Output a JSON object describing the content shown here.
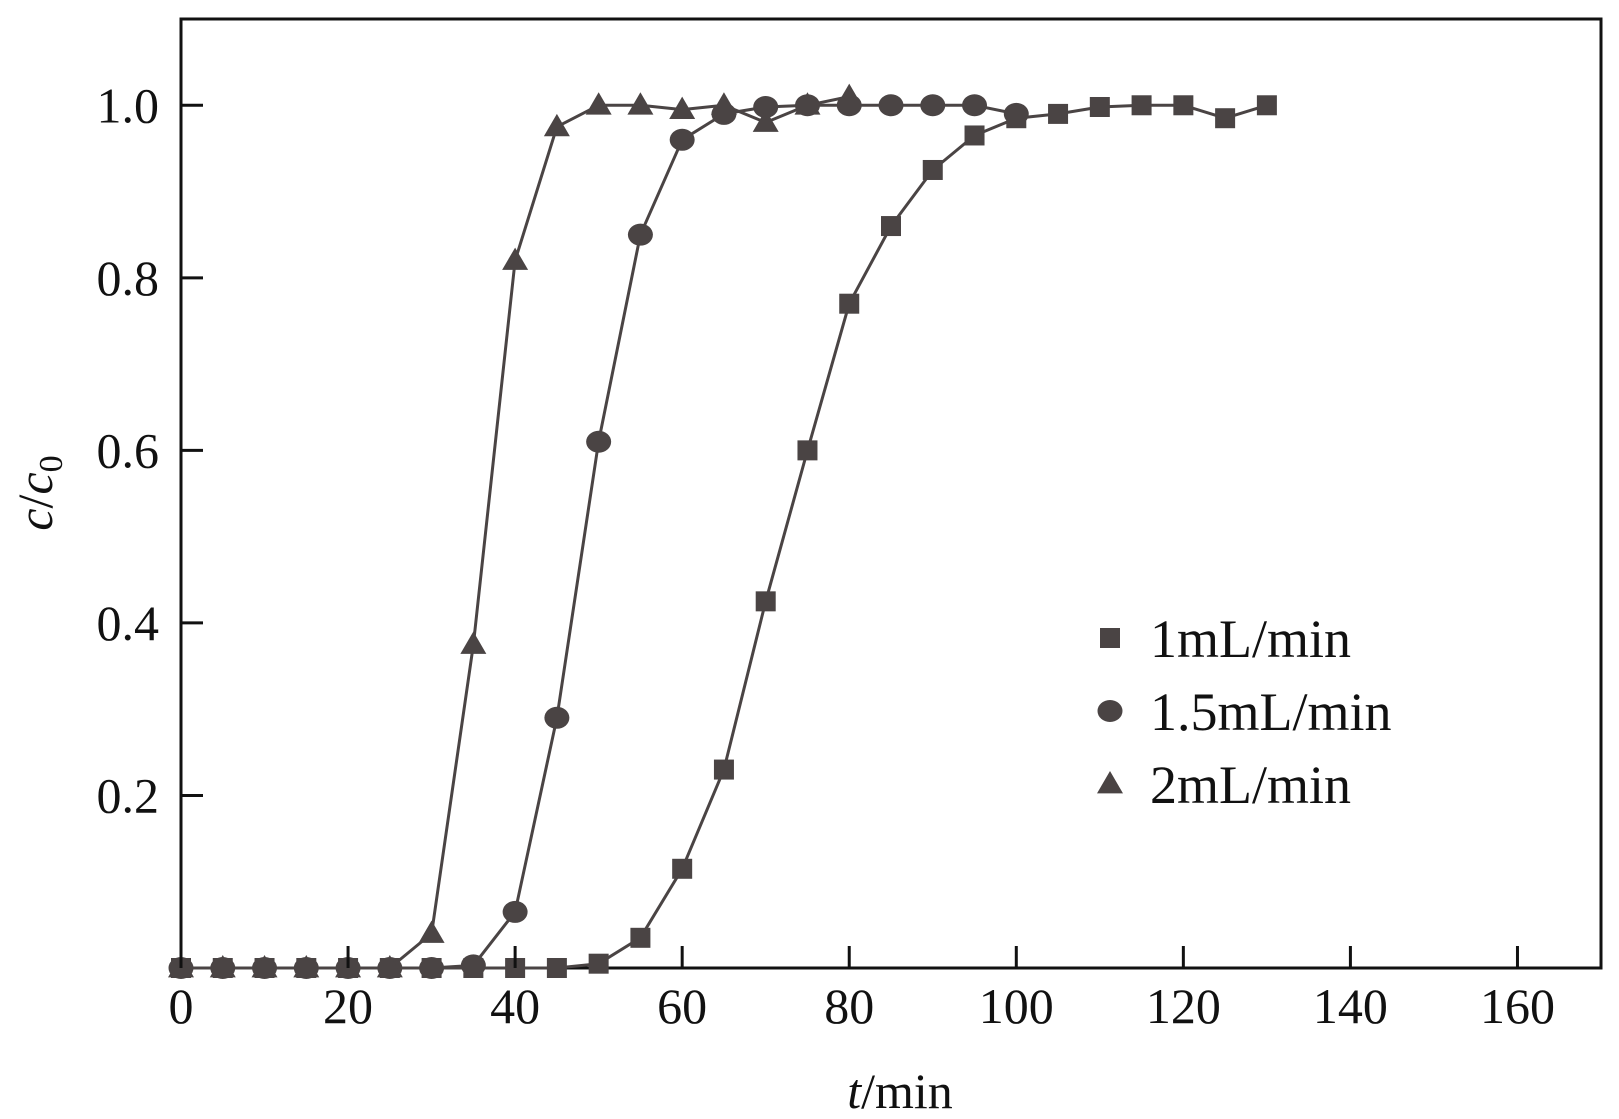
{
  "chart_data": {
    "type": "line",
    "title": "",
    "xlabel": "t/min",
    "xlabel_parts": {
      "var": "t",
      "unit": "/min"
    },
    "ylabel": "c/c0",
    "ylabel_parts": {
      "var": "c",
      "sep": "/",
      "var2": "c",
      "sub": "0"
    },
    "xlim": [
      0,
      170
    ],
    "ylim": [
      0,
      1.1
    ],
    "x_ticks": [
      0,
      20,
      40,
      60,
      80,
      100,
      120,
      140,
      160
    ],
    "x_tick_labels": [
      "0",
      "20",
      "40",
      "60",
      "80",
      "100",
      "120",
      "140",
      "160"
    ],
    "y_ticks": [
      0.2,
      0.4,
      0.6,
      0.8,
      1.0
    ],
    "y_tick_labels": [
      "0.2",
      "0.4",
      "0.6",
      "0.8",
      "1.0"
    ],
    "grid": false,
    "legend_position": "lower-right",
    "line_color": "#4a4444",
    "series": [
      {
        "name": "1mL/min",
        "marker": "square",
        "x": [
          0,
          5,
          10,
          15,
          20,
          25,
          30,
          35,
          40,
          45,
          50,
          55,
          60,
          65,
          70,
          75,
          80,
          85,
          90,
          95,
          100,
          105,
          110,
          115,
          120,
          125,
          130
        ],
        "y": [
          0,
          0,
          0,
          0,
          0,
          0,
          0,
          0,
          0,
          0,
          0.005,
          0.035,
          0.115,
          0.23,
          0.425,
          0.6,
          0.77,
          0.86,
          0.925,
          0.965,
          0.985,
          0.99,
          0.998,
          1.0,
          1.0,
          0.985,
          1.0
        ]
      },
      {
        "name": "1.5mL/min",
        "marker": "circle",
        "x": [
          0,
          5,
          10,
          15,
          20,
          25,
          30,
          35,
          40,
          45,
          50,
          55,
          60,
          65,
          70,
          75,
          80,
          85,
          90,
          95,
          100
        ],
        "y": [
          0,
          0,
          0,
          0,
          0,
          0,
          0,
          0.003,
          0.065,
          0.29,
          0.61,
          0.85,
          0.96,
          0.99,
          0.998,
          1.0,
          1.0,
          1.0,
          1.0,
          1.0,
          0.99
        ]
      },
      {
        "name": "2mL/min",
        "marker": "triangle",
        "x": [
          0,
          5,
          10,
          15,
          20,
          25,
          30,
          35,
          40,
          45,
          50,
          55,
          60,
          65,
          70,
          75,
          80
        ],
        "y": [
          0,
          0,
          0,
          0,
          0,
          0,
          0.04,
          0.375,
          0.82,
          0.975,
          1.0,
          1.0,
          0.995,
          1.0,
          0.98,
          1.0,
          1.01
        ]
      }
    ]
  }
}
